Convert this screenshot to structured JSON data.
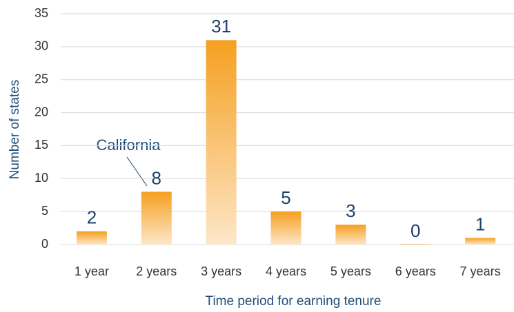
{
  "chart_data": {
    "type": "bar",
    "categories": [
      "1 year",
      "2 years",
      "3 years",
      "4 years",
      "5 years",
      "6 years",
      "7 years"
    ],
    "values": [
      2,
      8,
      31,
      5,
      3,
      0,
      1
    ],
    "color": "#f5a020",
    "gradient_end": "#fde6c8",
    "ylim": [
      0,
      35
    ],
    "yticks": [
      0,
      5,
      10,
      15,
      20,
      25,
      30,
      35
    ],
    "grid": true,
    "xlabel": "Time period for earning tenure",
    "ylabel": "Number of states",
    "annotation": "California"
  }
}
